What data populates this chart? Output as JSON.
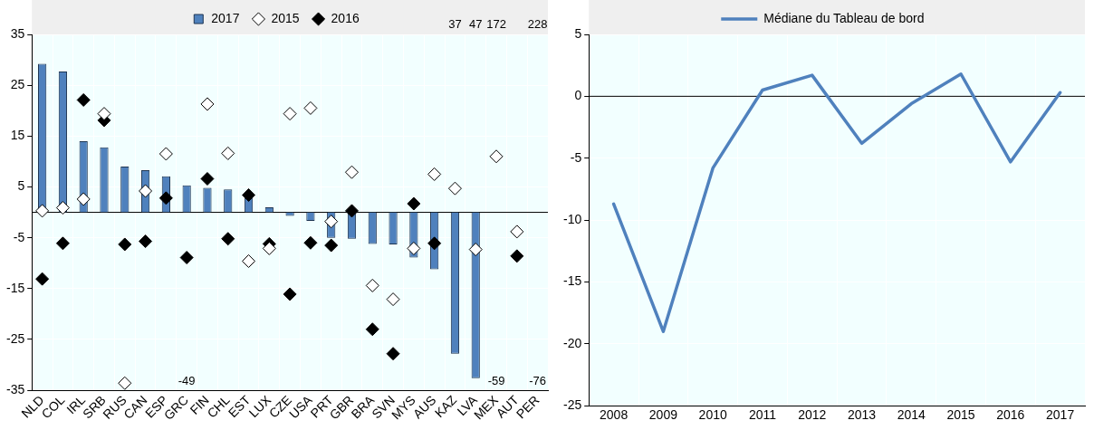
{
  "chart_data": [
    {
      "type": "bar",
      "categories": [
        "NLD",
        "COL",
        "IRL",
        "SRB",
        "RUS",
        "CAN",
        "ESP",
        "GRC",
        "FIN",
        "CHL",
        "EST",
        "LUX",
        "CZE",
        "USA",
        "PRT",
        "GBR",
        "BRA",
        "SVN",
        "MYS",
        "AUS",
        "KAZ",
        "LVA",
        "MEX",
        "AUT",
        "PER"
      ],
      "series": [
        {
          "name": "2017",
          "type": "bar",
          "color": "#4f81bd",
          "values": [
            29.2,
            27.7,
            14.0,
            12.8,
            9.0,
            8.3,
            7.1,
            5.3,
            4.8,
            4.5,
            3.1,
            1.0,
            -0.7,
            -1.7,
            -5.0,
            -5.2,
            -6.2,
            -6.3,
            -8.9,
            -11.2,
            -27.8,
            -32.6,
            null,
            null,
            null
          ]
        },
        {
          "name": "2015",
          "type": "scatter",
          "marker": "diamond",
          "color": "#ffffff",
          "values": [
            0.3,
            0.9,
            2.6,
            19.4,
            -33.6,
            4.2,
            11.5,
            null,
            21.3,
            11.6,
            -9.6,
            -7.1,
            19.4,
            20.5,
            -1.8,
            7.9,
            -14.4,
            -17.1,
            -7.1,
            7.5,
            4.7,
            -7.3,
            11.0,
            -3.8,
            null
          ]
        },
        {
          "name": "2016",
          "type": "scatter",
          "marker": "diamond",
          "color": "#000000",
          "values": [
            -13.1,
            -6.1,
            22.1,
            18.1,
            -6.3,
            -5.7,
            2.8,
            -8.9,
            6.6,
            -5.2,
            3.4,
            -6.2,
            -16.1,
            -6.0,
            -6.5,
            0.3,
            -23.0,
            -27.8,
            1.7,
            -6.1,
            null,
            null,
            null,
            -8.6,
            null
          ]
        }
      ],
      "annotations": [
        "37",
        "47",
        "172",
        "228",
        "-49",
        "-59",
        "-76"
      ],
      "ylim": [
        -35,
        35
      ],
      "yticks": [
        -35,
        -25,
        -15,
        -5,
        5,
        15,
        25,
        35
      ],
      "grid": true,
      "legend": "top",
      "ref_lines": [
        {
          "axis": "y",
          "value": 0,
          "color": "#000000"
        }
      ]
    },
    {
      "type": "line",
      "categories": [
        "2008",
        "2009",
        "2010",
        "2011",
        "2012",
        "2013",
        "2014",
        "2015",
        "2016",
        "2017"
      ],
      "series": [
        {
          "name": "Médiane du Tableau de bord",
          "color": "#4f81bd",
          "values": [
            -8.7,
            -19.0,
            -5.8,
            0.5,
            1.7,
            -3.8,
            -0.6,
            1.8,
            -5.3,
            0.3
          ]
        }
      ],
      "ylim": [
        -25,
        5
      ],
      "yticks": [
        -25,
        -20,
        -15,
        -10,
        -5,
        0,
        5
      ],
      "grid": true,
      "legend": "top",
      "marker": "none",
      "ref_lines": [
        {
          "axis": "y",
          "value": 0,
          "color": "#000000"
        }
      ]
    }
  ]
}
